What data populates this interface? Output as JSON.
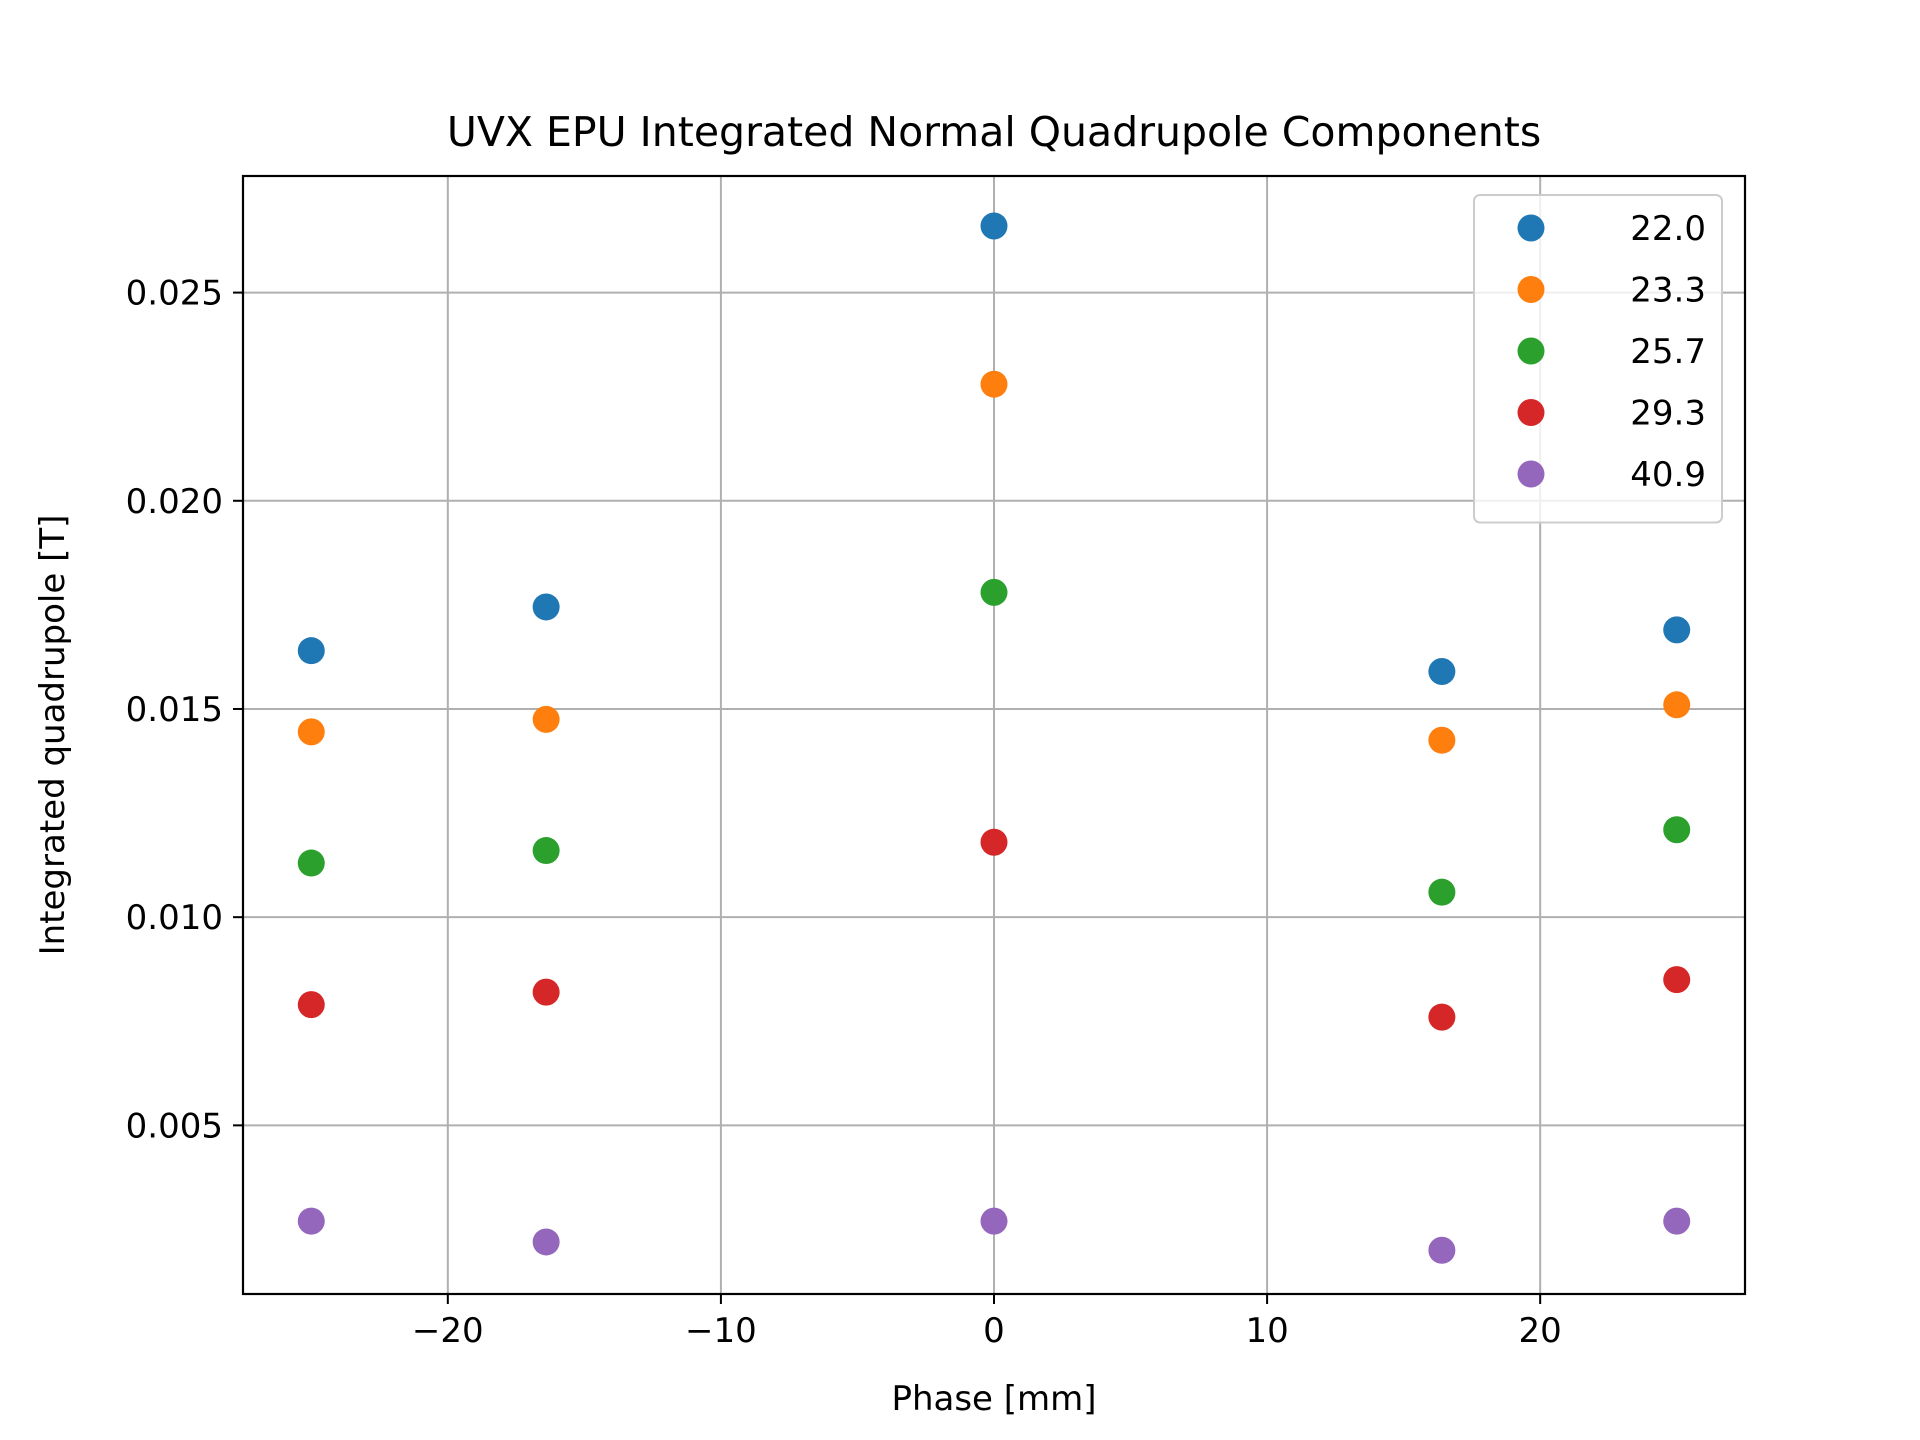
{
  "chart_data": {
    "type": "scatter",
    "title": "UVX EPU Integrated Normal Quadrupole Components",
    "xlabel": "Phase [mm]",
    "ylabel": "Integrated quadrupole [T]",
    "xlim": [
      -27.5,
      27.5
    ],
    "ylim": [
      0.00095,
      0.0278
    ],
    "xticks": [
      -20,
      -10,
      0,
      10,
      20
    ],
    "xtick_labels": [
      "−20",
      "−10",
      "0",
      "10",
      "20"
    ],
    "yticks": [
      0.005,
      0.01,
      0.015,
      0.02,
      0.025
    ],
    "ytick_labels": [
      "0.005",
      "0.010",
      "0.015",
      "0.020",
      "0.025"
    ],
    "grid": true,
    "legend_position": "top-right",
    "x": [
      -25.0,
      -16.4,
      0.0,
      16.4,
      25.0
    ],
    "series": [
      {
        "name": "22.0",
        "color": "#1f77b4",
        "values": [
          0.0164,
          0.01745,
          0.0266,
          0.0159,
          0.0169
        ]
      },
      {
        "name": "23.3",
        "color": "#ff7f0e",
        "values": [
          0.01445,
          0.01475,
          0.0228,
          0.01425,
          0.0151
        ]
      },
      {
        "name": "25.7",
        "color": "#2ca02c",
        "values": [
          0.0113,
          0.0116,
          0.0178,
          0.0106,
          0.0121
        ]
      },
      {
        "name": "29.3",
        "color": "#d62728",
        "values": [
          0.0079,
          0.0082,
          0.0118,
          0.0076,
          0.0085
        ]
      },
      {
        "name": "40.9",
        "color": "#9467bd",
        "values": [
          0.0027,
          0.0022,
          0.0027,
          0.002,
          0.0027
        ]
      }
    ]
  }
}
